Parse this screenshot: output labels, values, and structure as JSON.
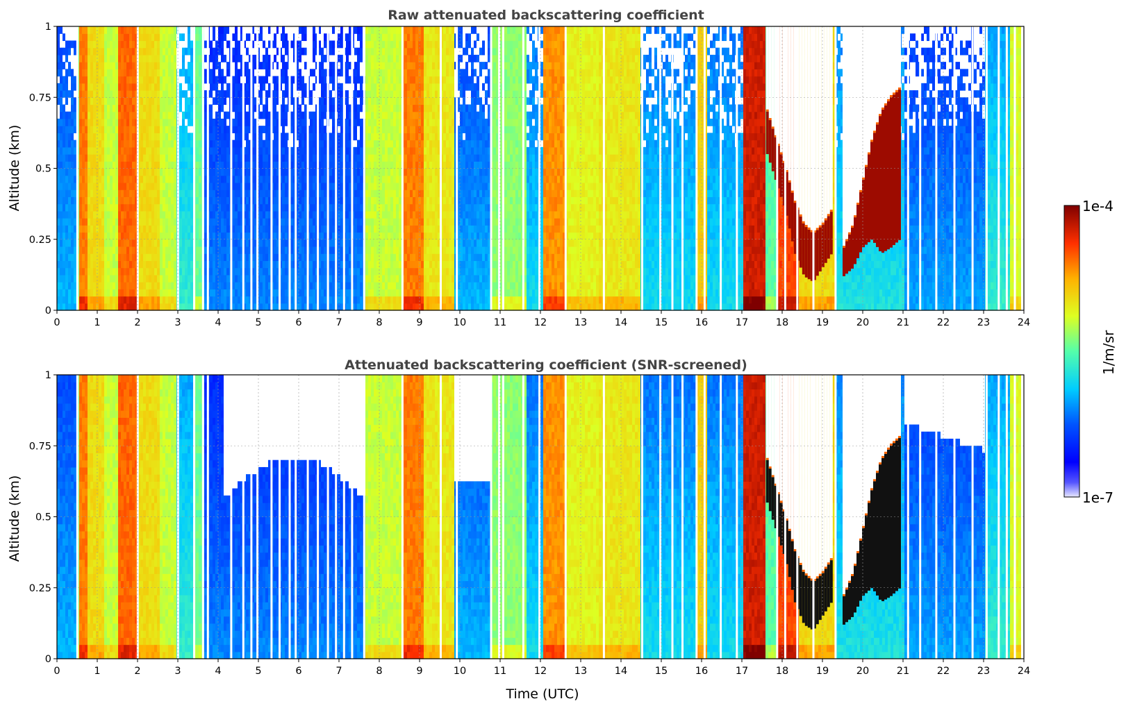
{
  "chart_data": [
    {
      "type": "heatmap",
      "title": "Raw attenuated backscattering coefficient",
      "xlabel": "",
      "ylabel": "Altitude (km)",
      "xlim": [
        0,
        24
      ],
      "ylim": [
        0,
        1
      ],
      "xticks": [
        "0",
        "1",
        "2",
        "3",
        "4",
        "5",
        "6",
        "7",
        "8",
        "9",
        "10",
        "11",
        "12",
        "13",
        "14",
        "15",
        "16",
        "17",
        "18",
        "19",
        "20",
        "21",
        "22",
        "23",
        "24"
      ],
      "yticks": [
        "0",
        "0.25",
        "0.5",
        "0.75",
        "1"
      ],
      "grid": true,
      "screened": false,
      "cloud_layers": [
        {
          "start": 17.6,
          "end": 19.2,
          "base": [
            0.55,
            0.45,
            0.35,
            0.2,
            0.12,
            0.1,
            0.15,
            0.2
          ],
          "top": [
            0.7,
            0.6,
            0.5,
            0.38,
            0.3,
            0.27,
            0.3,
            0.35
          ]
        },
        {
          "start": 19.5,
          "end": 20.9,
          "base": [
            0.12,
            0.15,
            0.22,
            0.25,
            0.2,
            0.22,
            0.25
          ],
          "top": [
            0.22,
            0.3,
            0.45,
            0.6,
            0.7,
            0.75,
            0.78
          ]
        }
      ]
    },
    {
      "type": "heatmap",
      "title": "Attenuated backscattering coefficient (SNR-screened)",
      "xlabel": "Time (UTC)",
      "ylabel": "Altitude (km)",
      "xlim": [
        0,
        24
      ],
      "ylim": [
        0,
        1
      ],
      "xticks": [
        "0",
        "1",
        "2",
        "3",
        "4",
        "5",
        "6",
        "7",
        "8",
        "9",
        "10",
        "11",
        "12",
        "13",
        "14",
        "15",
        "16",
        "17",
        "18",
        "19",
        "20",
        "21",
        "22",
        "23",
        "24"
      ],
      "yticks": [
        "0",
        "0.25",
        "0.5",
        "0.75",
        "1"
      ],
      "grid": true,
      "screened": true,
      "cloud_layers": [
        {
          "start": 17.6,
          "end": 19.2,
          "base": [
            0.55,
            0.45,
            0.35,
            0.2,
            0.12,
            0.1,
            0.15,
            0.2
          ],
          "top": [
            0.7,
            0.6,
            0.5,
            0.38,
            0.3,
            0.27,
            0.3,
            0.35
          ]
        },
        {
          "start": 19.5,
          "end": 20.9,
          "base": [
            0.12,
            0.15,
            0.22,
            0.25,
            0.2,
            0.22,
            0.25
          ],
          "top": [
            0.22,
            0.3,
            0.45,
            0.6,
            0.7,
            0.75,
            0.78
          ]
        }
      ]
    }
  ],
  "colorbar": {
    "label": "1/m/sr",
    "max_label": "1e-4",
    "min_label": "1e-7",
    "scale": "log",
    "colormap": "jet",
    "range": [
      1e-07,
      0.0001
    ]
  },
  "intensity_profile": {
    "note_free": true,
    "segments": [
      [
        0.0,
        0.45,
        0.35
      ],
      [
        0.45,
        0.55,
        0.55
      ],
      [
        0.55,
        0.75,
        0.8
      ],
      [
        0.75,
        1.15,
        0.68
      ],
      [
        1.15,
        1.45,
        0.6
      ],
      [
        1.45,
        1.95,
        0.82
      ],
      [
        1.95,
        2.55,
        0.68
      ],
      [
        2.55,
        2.95,
        0.6
      ],
      [
        2.95,
        3.35,
        0.45
      ],
      [
        3.35,
        3.65,
        0.52
      ],
      [
        3.65,
        7.6,
        0.3
      ],
      [
        7.6,
        8.55,
        0.6
      ],
      [
        8.55,
        9.05,
        0.8
      ],
      [
        9.05,
        9.85,
        0.66
      ],
      [
        9.85,
        10.75,
        0.35
      ],
      [
        10.75,
        11.6,
        0.55
      ],
      [
        11.6,
        12.05,
        0.4
      ],
      [
        12.05,
        12.6,
        0.78
      ],
      [
        12.6,
        13.4,
        0.64
      ],
      [
        13.4,
        14.45,
        0.66
      ],
      [
        14.45,
        15.8,
        0.4
      ],
      [
        15.8,
        16.1,
        0.7
      ],
      [
        16.1,
        17.0,
        0.4
      ],
      [
        17.0,
        17.55,
        0.92
      ],
      [
        17.55,
        17.85,
        0.5
      ],
      [
        17.85,
        18.35,
        0.85
      ],
      [
        18.35,
        19.25,
        0.68
      ],
      [
        19.25,
        21.0,
        0.42
      ],
      [
        21.0,
        23.0,
        0.33
      ],
      [
        23.0,
        23.65,
        0.45
      ],
      [
        23.65,
        23.9,
        0.62
      ]
    ],
    "gaps": [
      0.48,
      1.98,
      2.98,
      3.38,
      3.6,
      3.72,
      4.3,
      4.6,
      4.8,
      4.95,
      5.3,
      5.5,
      5.75,
      5.9,
      6.2,
      6.45,
      6.7,
      6.9,
      7.1,
      7.3,
      7.6,
      8.55,
      9.5,
      9.9,
      10.75,
      10.95,
      11.05,
      11.55,
      11.95,
      12.6,
      13.55,
      14.5,
      14.95,
      15.25,
      15.5,
      15.85,
      16.05,
      16.45,
      16.85,
      17.85,
      18.05,
      18.35,
      18.75,
      19.3,
      21.1,
      21.4,
      21.8,
      22.25,
      22.7,
      23.05,
      23.35,
      23.55,
      23.75
    ]
  }
}
